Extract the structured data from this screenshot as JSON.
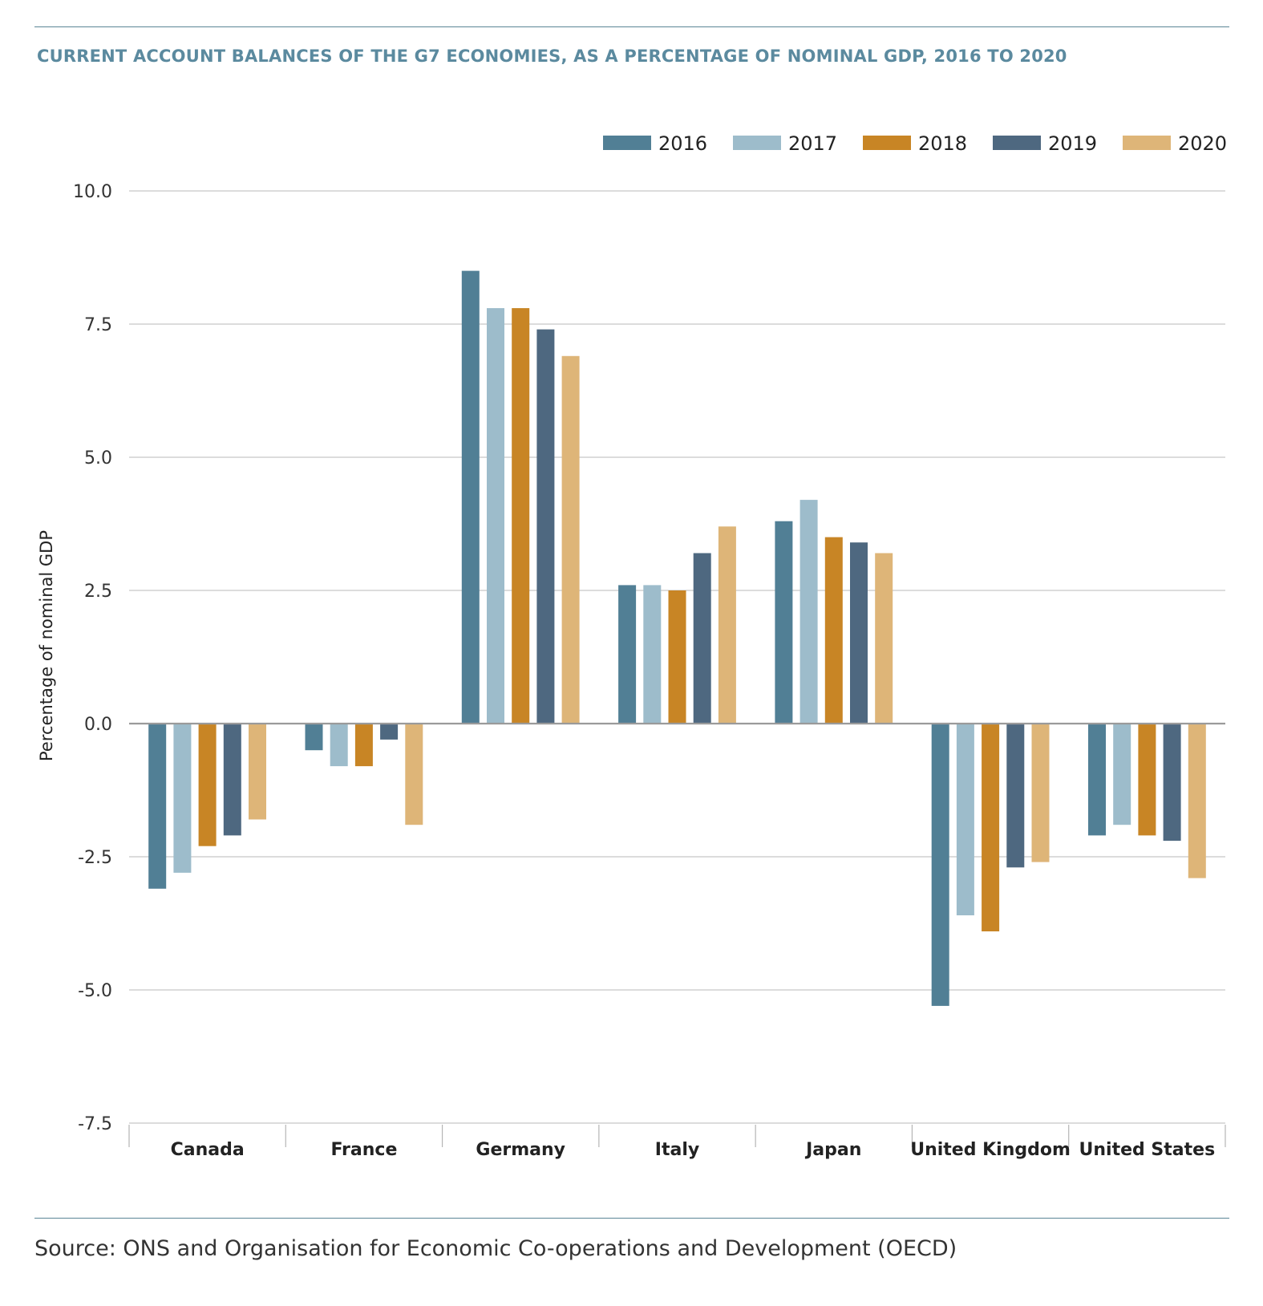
{
  "chart_data": {
    "type": "bar",
    "title": "CURRENT ACCOUNT BALANCES OF THE G7 ECONOMIES, AS A PERCENTAGE OF NOMINAL GDP, 2016 TO 2020",
    "ylabel": "Percentage of nominal GDP",
    "xlabel": "",
    "ylim": [
      -7.5,
      10.0
    ],
    "yticks": [
      10.0,
      7.5,
      5.0,
      2.5,
      0.0,
      -2.5,
      -5.0,
      -7.5
    ],
    "ytick_labels": [
      "10.0",
      "7.5",
      "5.0",
      "2.5",
      "0.0",
      "-2.5",
      "-5.0",
      "-7.5"
    ],
    "grid": true,
    "legend_position": "top-right",
    "categories": [
      "Canada",
      "France",
      "Germany",
      "Italy",
      "Japan",
      "United Kingdom",
      "United States"
    ],
    "series": [
      {
        "name": "2016",
        "color": "#517f95",
        "values": [
          -3.1,
          -0.5,
          8.5,
          2.6,
          3.8,
          -5.3,
          -2.1
        ]
      },
      {
        "name": "2017",
        "color": "#9dbccb",
        "values": [
          -2.8,
          -0.8,
          7.8,
          2.6,
          4.2,
          -3.6,
          -1.9
        ]
      },
      {
        "name": "2018",
        "color": "#c88525",
        "values": [
          -2.3,
          -0.8,
          7.8,
          2.5,
          3.5,
          -3.9,
          -2.1
        ]
      },
      {
        "name": "2019",
        "color": "#4e6880",
        "values": [
          -2.1,
          -0.3,
          7.4,
          3.2,
          3.4,
          -2.7,
          -2.2
        ]
      },
      {
        "name": "2020",
        "color": "#deb578",
        "values": [
          -1.8,
          -1.9,
          6.9,
          3.7,
          3.2,
          -2.6,
          -2.9
        ]
      }
    ]
  },
  "source": "Source: ONS and Organisation for Economic Co-operations and Development (OECD)"
}
